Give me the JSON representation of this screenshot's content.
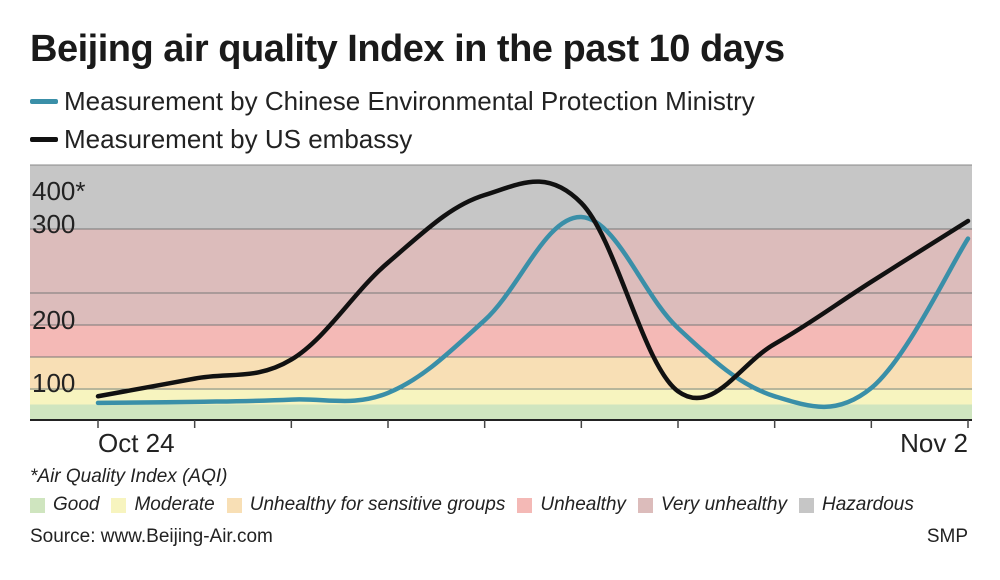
{
  "header": {
    "title": "Beijing air quality Index in the past 10 days"
  },
  "legend": {
    "ministry_label": "Measurement by Chinese Environmental Protection Ministry",
    "embassy_label": "Measurement by US embassy"
  },
  "footnote": "*Air Quality Index (AQI)",
  "categories_legend": [
    {
      "label": "Good",
      "color": "#cfe5bf"
    },
    {
      "label": "Moderate",
      "color": "#f7f4bf"
    },
    {
      "label": "Unhealthy for sensitive groups",
      "color": "#f8dfb5"
    },
    {
      "label": "Unhealthy",
      "color": "#f4b9b6"
    },
    {
      "label": "Very unhealthy",
      "color": "#dcbcbb"
    },
    {
      "label": "Hazardous",
      "color": "#c6c6c6"
    }
  ],
  "footer": {
    "source": "Source: www.Beijing-Air.com",
    "credit": "SMP"
  },
  "chart_data": {
    "type": "line",
    "x": [
      0,
      1,
      2,
      3,
      4,
      5,
      6,
      7,
      8,
      9
    ],
    "x_tick_labels": [
      "Oct 24",
      "",
      "",
      "",
      "",
      "",
      "",
      "",
      "",
      "Nov 2"
    ],
    "ylim": [
      0,
      500
    ],
    "y_ticks": [
      {
        "value": 100,
        "label": "100"
      },
      {
        "value": 200,
        "label": "200"
      },
      {
        "value": 300,
        "label": "300"
      },
      {
        "value": 400,
        "label": "400*"
      }
    ],
    "bands": [
      {
        "name": "Good",
        "from": 0,
        "to": 50,
        "color": "#cfe5bf"
      },
      {
        "name": "Moderate",
        "from": 50,
        "to": 100,
        "color": "#f7f4bf"
      },
      {
        "name": "Unhealthy for sensitive groups",
        "from": 100,
        "to": 150,
        "color": "#f8dfb5"
      },
      {
        "name": "Unhealthy",
        "from": 150,
        "to": 200,
        "color": "#f4b9b6"
      },
      {
        "name": "Very unhealthy",
        "from": 200,
        "to": 300,
        "color": "#dcbcbb"
      },
      {
        "name": "Hazardous",
        "from": 300,
        "to": 500,
        "color": "#c6c6c6"
      }
    ],
    "series": [
      {
        "name": "Measurement by Chinese Environmental Protection Ministry",
        "color": "#3a8fa8",
        "values": [
          55,
          58,
          65,
          85,
          205,
          330,
          195,
          75,
          100,
          290
        ]
      },
      {
        "name": "Measurement by US embassy",
        "color": "#111111",
        "values": [
          75,
          115,
          145,
          265,
          385,
          365,
          90,
          170,
          245,
          320
        ]
      }
    ]
  }
}
